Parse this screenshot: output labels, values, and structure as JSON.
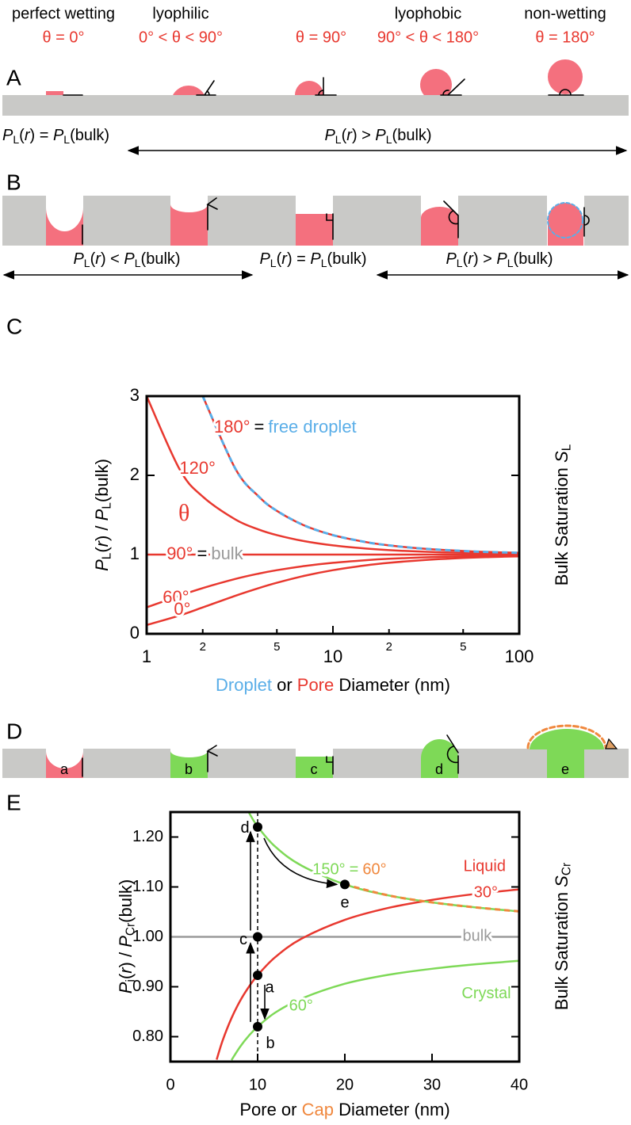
{
  "header": {
    "names": [
      "perfect wetting",
      "lyophilic",
      "lyophobic",
      "non-wetting"
    ],
    "angles": [
      "θ = 0°",
      "0° < θ < 90°",
      "θ = 90°",
      "90° < θ < 180°",
      "θ = 180°"
    ]
  },
  "panel_labels": [
    "A",
    "B",
    "C",
    "D",
    "E"
  ],
  "row_a": {
    "relations": [
      [
        "P",
        "L",
        "(",
        "r",
        ") = ",
        "P",
        "L",
        "(bulk)"
      ],
      [
        "P",
        "L",
        "(",
        "r",
        ") > ",
        "P",
        "L",
        "(bulk)"
      ]
    ]
  },
  "row_b": {
    "relations": [
      [
        "P",
        "L",
        "(",
        "r",
        ") < ",
        "P",
        "L",
        "(bulk)"
      ],
      [
        "P",
        "L",
        "(",
        "r",
        ") = ",
        "P",
        "L",
        "(bulk)"
      ],
      [
        "P",
        "L",
        "(",
        "r",
        ") > ",
        "P",
        "L",
        "(bulk)"
      ]
    ]
  },
  "row_d": {
    "labels": [
      "a",
      "b",
      "c",
      "d",
      "e"
    ]
  },
  "chart_data": [
    {
      "type": "line",
      "x_scale": "log",
      "xlim": [
        1,
        100
      ],
      "ylim": [
        0,
        3
      ],
      "xticks": [
        1,
        2,
        5,
        10,
        {
          "value": 20,
          "label": "2"
        },
        {
          "value": 50,
          "label": "5"
        },
        100
      ],
      "yticks": [
        0,
        1,
        2,
        3
      ],
      "x": [
        1,
        1.5,
        2,
        3,
        4,
        5,
        7,
        10,
        15,
        20,
        30,
        50,
        70,
        100
      ],
      "series": [
        {
          "name": "180°",
          "color": "#e8382f",
          "values": [
            null,
            null,
            3,
            2.08,
            1.732,
            1.552,
            1.369,
            1.246,
            1.158,
            1.116,
            1.076,
            1.045,
            1.032,
            1.022
          ]
        },
        {
          "name": "120°",
          "color": "#e8382f",
          "values": [
            3,
            2.08,
            1.732,
            1.442,
            1.316,
            1.246,
            1.17,
            1.116,
            1.076,
            1.056,
            1.037,
            1.022,
            1.016,
            1.011
          ]
        },
        {
          "name": "90°",
          "color": "#e8382f",
          "values": [
            1,
            1,
            1,
            1,
            1,
            1,
            1,
            1,
            1,
            1,
            1,
            1,
            1,
            1
          ]
        },
        {
          "name": "60°",
          "color": "#e8382f",
          "values": [
            0.333,
            0.481,
            0.577,
            0.693,
            0.76,
            0.803,
            0.855,
            0.896,
            0.929,
            0.947,
            0.964,
            0.978,
            0.984,
            0.989
          ]
        },
        {
          "name": "0°",
          "color": "#e8382f",
          "values": [
            0.111,
            0.231,
            0.333,
            0.481,
            0.577,
            0.644,
            0.731,
            0.803,
            0.864,
            0.896,
            0.929,
            0.957,
            0.969,
            0.978
          ]
        },
        {
          "name": "free droplet",
          "color": "#5aaee8",
          "dashed": true,
          "values": [
            null,
            null,
            3,
            2.08,
            1.732,
            1.552,
            1.369,
            1.246,
            1.158,
            1.116,
            1.076,
            1.045,
            1.032,
            1.022
          ]
        }
      ],
      "annotations": {
        "theta": "θ",
        "equals": "=",
        "bulk": "bulk"
      },
      "xlabel": [
        "Droplet",
        " or ",
        "Pore",
        " Diameter (nm)"
      ],
      "ylabel": [
        "P",
        "L",
        "(",
        "r",
        ") / ",
        "P",
        "L",
        "(bulk)"
      ],
      "y2label": [
        "Bulk Saturation ",
        "S",
        "L"
      ]
    },
    {
      "type": "line",
      "xlim": [
        0,
        40
      ],
      "ylim": [
        0.75,
        1.25
      ],
      "xticks": [
        0,
        10,
        20,
        30,
        40
      ],
      "yticks": [
        {
          "value": 0.8,
          "label": "0.80"
        },
        {
          "value": 0.9,
          "label": "0.90"
        },
        {
          "value": 1,
          "label": "1.00"
        },
        {
          "value": 1.1,
          "label": "1.10"
        },
        {
          "value": 1.2,
          "label": "1.20"
        }
      ],
      "series": [
        {
          "name": "bulk",
          "color": "#9a9a9a",
          "x": [
            0,
            40
          ],
          "values": [
            1,
            1
          ]
        },
        {
          "name": "30°",
          "color": "#e8382f",
          "x": [
            5.3,
            6,
            7,
            8,
            9,
            10,
            12,
            15,
            20,
            25,
            30,
            35,
            40
          ],
          "values": [
            0.754,
            0.793,
            0.837,
            0.872,
            0.9,
            0.923,
            0.959,
            0.996,
            1.034,
            1.058,
            1.074,
            1.086,
            1.095
          ]
        },
        {
          "name": "60°",
          "color": "#7ed957",
          "x": [
            7,
            8,
            9,
            10,
            12,
            15,
            20,
            25,
            30,
            35,
            40
          ],
          "values": [
            0.753,
            0.78,
            0.802,
            0.82,
            0.848,
            0.876,
            0.906,
            0.924,
            0.936,
            0.945,
            0.952
          ]
        },
        {
          "name": "150°",
          "color": "#7ed957",
          "x": [
            9,
            10,
            12,
            15,
            20,
            25,
            30,
            35,
            40
          ],
          "values": [
            1.249,
            1.221,
            1.181,
            1.143,
            1.105,
            1.083,
            1.069,
            1.059,
            1.051
          ]
        },
        {
          "name": "60°",
          "color": "#f0883e",
          "dashed": true,
          "x": [
            20,
            25,
            30,
            35,
            40
          ],
          "values": [
            1.105,
            1.083,
            1.069,
            1.059,
            1.051
          ]
        }
      ],
      "vline": 10,
      "points": [
        {
          "label": "a",
          "x": 10,
          "value": 0.923
        },
        {
          "label": "b",
          "x": 10,
          "value": 0.82
        },
        {
          "label": "c",
          "x": 10,
          "value": 1
        },
        {
          "label": "d",
          "x": 10,
          "value": 1.22
        },
        {
          "label": "e",
          "x": 20,
          "value": 1.105
        }
      ],
      "annotations": {
        "liquid": "Liquid",
        "crystal": "Crystal",
        "equals": "="
      },
      "xlabel": [
        "Pore or ",
        "Cap",
        " Diameter (nm)"
      ],
      "ylabel": [
        "P",
        "i",
        "(",
        "r",
        ") / ",
        "P",
        "Cr",
        "(bulk)"
      ],
      "y2label": [
        "Bulk Saturation ",
        "S",
        "Cr"
      ]
    }
  ]
}
